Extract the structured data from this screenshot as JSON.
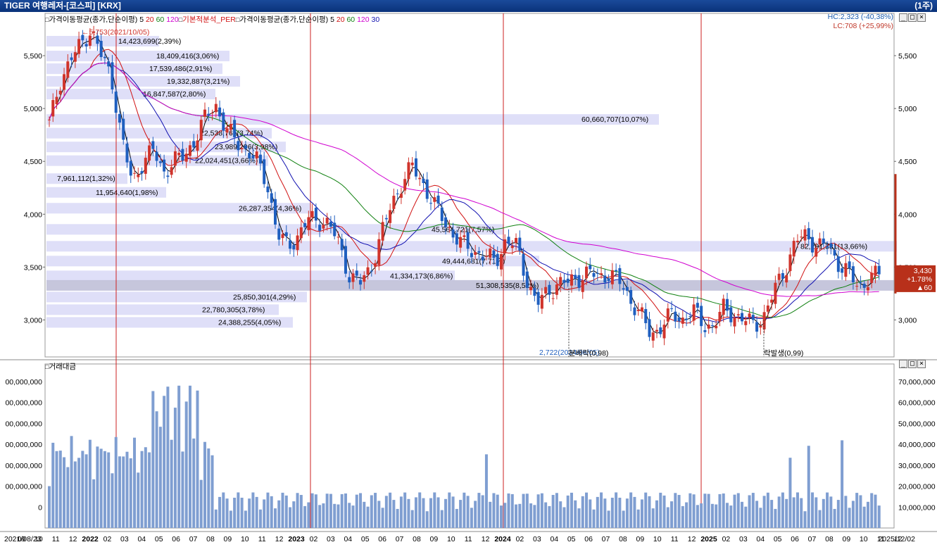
{
  "window": {
    "title": "TIGER 여행레저-[코스피] [KRX]",
    "period": "(1주)"
  },
  "legend": {
    "ma_label": "가격이동평균(종가,단순이평)",
    "ma_periods": [
      "5",
      "20",
      "60",
      "120"
    ],
    "per_label": "기본적분석_PER",
    "ma2_label": "가격이동평균(종가,단순이평)",
    "ma2_periods": [
      "5",
      "20",
      "60",
      "120",
      "30"
    ],
    "volume_label": "거래대금"
  },
  "hc": "HC:2,323 (-40,38%)",
  "lc": "LC:708 (+25,99%)",
  "current_price": {
    "value": "3,430",
    "change": "+1.78%",
    "diff": "▲60"
  },
  "annotations": {
    "high": "5,753(2021/10/05)",
    "low": "2,722(2024/08/05)",
    "dividend1": "분배락(0,98)",
    "dividend2": "락발생(0,99)"
  },
  "price_axis": [
    "5,500",
    "5,000",
    "4,500",
    "4,000",
    "3,500",
    "3,000"
  ],
  "volume_axis_right": [
    "70,000,000",
    "60,000,000",
    "50,000,000",
    "40,000,000",
    "30,000,000",
    "20,000,000",
    "10,000,000"
  ],
  "volume_axis_left": [
    "00,000,000",
    "00,000,000",
    "00,000,000",
    "00,000,000",
    "00,000,000",
    "00,000,000",
    "0"
  ],
  "x_axis": [
    "2021/08/23",
    "09",
    "10",
    "11",
    "12",
    "2022",
    "02",
    "03",
    "04",
    "05",
    "06",
    "07",
    "08",
    "09",
    "10",
    "11",
    "12",
    "2023",
    "02",
    "03",
    "04",
    "05",
    "06",
    "07",
    "08",
    "09",
    "10",
    "11",
    "12",
    "2024",
    "02",
    "03",
    "04",
    "05",
    "06",
    "07",
    "08",
    "09",
    "10",
    "11",
    "12",
    "2025",
    "02",
    "03",
    "04",
    "05",
    "06",
    "07",
    "08",
    "09",
    "10",
    "11",
    "12",
    "2025/12/02"
  ],
  "volume_profile": [
    "14,423,699(2,39%)",
    "18,409,416(3,06%)",
    "17,539,486(2,91%)",
    "19,332,887(3,21%)",
    "16,847,587(2,80%)",
    "60,660,707(10,07%)",
    "22,538,761(3,74%)",
    "23,989,296(3,98%)",
    "22,024,451(3,66%)",
    "7,961,112(1,32%)",
    "11,954,640(1,98%)",
    "26,287,354(4,36%)",
    "45,564,721(7,57%)",
    "82,201,331(13,66%)",
    "49,444,681(7,71%)",
    "41,334,173(6,86%)",
    "51,308,535(8,52%)",
    "25,850,301(4,29%)",
    "22,780,305(3,78%)",
    "24,388,255(4,05%)"
  ],
  "colors": {
    "up": "#d0342c",
    "down": "#1f5fbf",
    "ma5": "#000000",
    "ma20": "#d01010",
    "ma60": "#108010",
    "ma120": "#d000d0",
    "ma30": "#1010b0",
    "volume": "#7f9ed1",
    "profile": "#dcdcf7",
    "profile_hi": "#c0c0d8",
    "year_line": "#cc2020",
    "badge": "#b8301a"
  },
  "chart_data": {
    "type": "candlestick",
    "title": "TIGER 여행레저-[코스피] [KRX]",
    "period": "weekly",
    "x_range": [
      "2021/08/23",
      "2025/12/02"
    ],
    "ylim": [
      2650,
      5900
    ],
    "price_ticks": [
      3000,
      3500,
      4000,
      4500,
      5000,
      5500
    ],
    "high": {
      "value": 5753,
      "date": "2021/10/05"
    },
    "low": {
      "value": 2722,
      "date": "2024/08/05"
    },
    "last": {
      "value": 3430,
      "change_pct": 1.78,
      "change": 60
    },
    "weekly_close_path": [
      4850,
      5250,
      5450,
      5600,
      5750,
      5500,
      5300,
      4700,
      4300,
      4500,
      4600,
      4400,
      4500,
      4550,
      4700,
      4900,
      5050,
      4800,
      4700,
      4600,
      4500,
      4300,
      3800,
      3700,
      3800,
      3950,
      3950,
      3900,
      3700,
      3400,
      3350,
      3500,
      3800,
      4100,
      4300,
      4450,
      4300,
      4100,
      3950,
      3800,
      3700,
      3650,
      3600,
      3550,
      3750,
      3700,
      3400,
      3150,
      3250,
      3350,
      3350,
      3400,
      3450,
      3400,
      3450,
      3350,
      3200,
      3050,
      2850,
      2950,
      3050,
      3000,
      3100,
      2950,
      2950,
      3100,
      3050,
      3000,
      2950,
      3050,
      3300,
      3500,
      3750,
      3800,
      3700,
      3700,
      3550,
      3450,
      3300,
      3400,
      3430
    ],
    "volume_ticks": [
      10000000,
      20000000,
      30000000,
      40000000,
      50000000,
      60000000,
      70000000
    ],
    "year_separators": [
      "2022",
      "2023",
      "2024",
      "2025"
    ]
  }
}
